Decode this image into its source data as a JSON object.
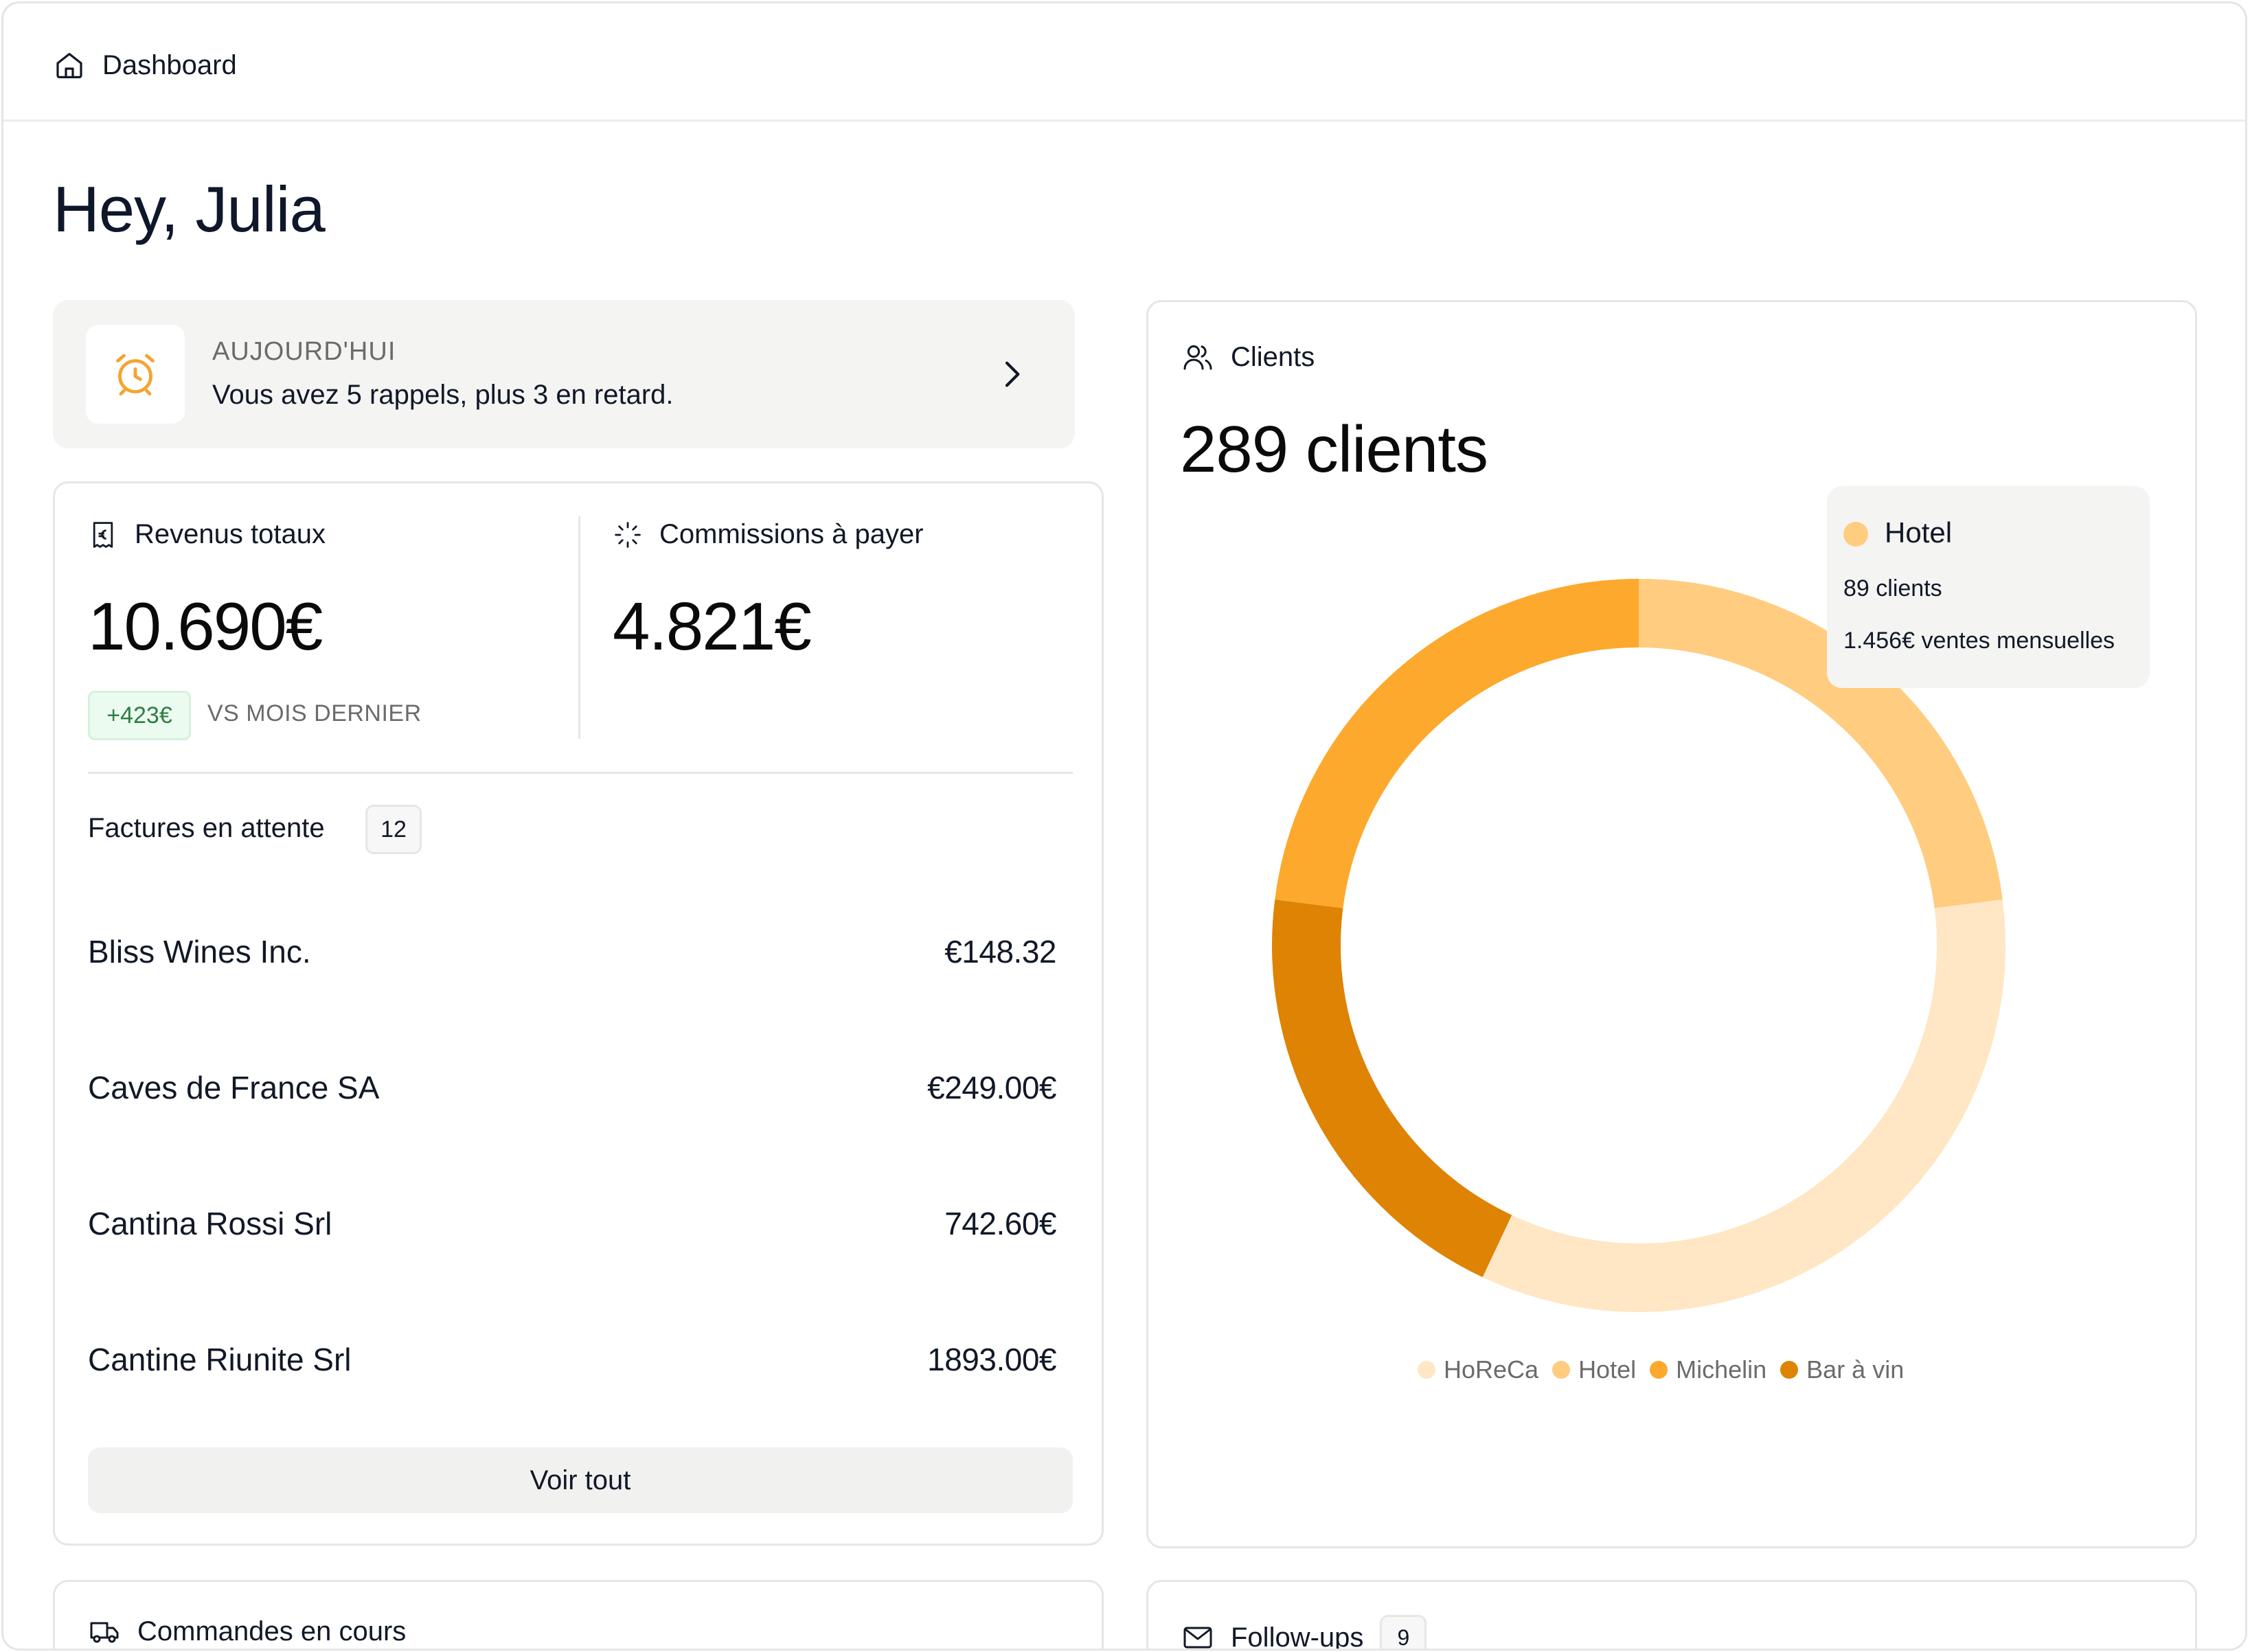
{
  "breadcrumb": {
    "label": "Dashboard",
    "icon": "home-icon"
  },
  "greeting": "Hey, Julia",
  "today": {
    "kicker": "AUJOURD'HUI",
    "message": "Vous avez 5 rappels, plus 3 en retard.",
    "icon": "alarm-clock-icon",
    "accent": "#f3a531"
  },
  "revenue": {
    "label": "Revenus totaux",
    "value": "10.690€",
    "delta": "+423€",
    "delta_note": "VS MOIS DERNIER",
    "icon": "receipt-euro-icon"
  },
  "commissions": {
    "label": "Commissions à payer",
    "value": "4.821€",
    "icon": "loader-icon"
  },
  "pending": {
    "title": "Factures en attente",
    "count": "12",
    "invoices": [
      {
        "name": "Bliss Wines Inc.",
        "amount": "€148.32"
      },
      {
        "name": "Caves de France SA",
        "amount": "€249.00€"
      },
      {
        "name": "Cantina Rossi Srl",
        "amount": "742.60€"
      },
      {
        "name": "Cantine Riunite Srl",
        "amount": "1893.00€"
      }
    ],
    "view_all": "Voir tout"
  },
  "clients": {
    "label": "Clients",
    "icon": "users-icon",
    "total": "289 clients",
    "tooltip": {
      "name": "Hotel",
      "line1": "89 clients",
      "line2": "1.456€ ventes mensuelles",
      "color": "#ffcc80"
    }
  },
  "chart_data": {
    "type": "pie",
    "categories": [
      "HoReCa",
      "Hotel",
      "Michelin",
      "Bar à vin"
    ],
    "values": [
      34,
      23,
      23,
      20
    ],
    "colors": [
      "#ffe7c5",
      "#ffcc80",
      "#fda92d",
      "#de8303"
    ],
    "legend": "bottom"
  },
  "orders": {
    "label": "Commandes en cours",
    "icon": "truck-icon"
  },
  "followups": {
    "label": "Follow-ups",
    "count": "9",
    "icon": "mail-icon"
  }
}
